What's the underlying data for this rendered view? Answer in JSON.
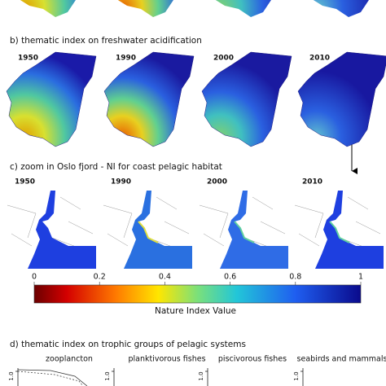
{
  "panel_b": {
    "title": "b) thematic index on freshwater acidification",
    "years": [
      "1950",
      "1990",
      "2000",
      "2010"
    ]
  },
  "panel_c": {
    "title": "c) zoom in Oslo fjord - NI for coast pelagic habitat",
    "years": [
      "1950",
      "1990",
      "2000",
      "2010"
    ]
  },
  "colorbar": {
    "ticks": [
      "0",
      "0.2",
      "0.4",
      "0.6",
      "0.8",
      "1"
    ],
    "label": "Nature Index Value"
  },
  "panel_d": {
    "title": "d) thematic index on trophic groups of pelagic systems",
    "groups": [
      "zooplancton",
      "planktivorous fishes",
      "piscivorous fishes",
      "seabirds and mammals"
    ],
    "axis_labels": [
      "1.0",
      "1.0",
      "1.0",
      "1.0"
    ]
  }
}
